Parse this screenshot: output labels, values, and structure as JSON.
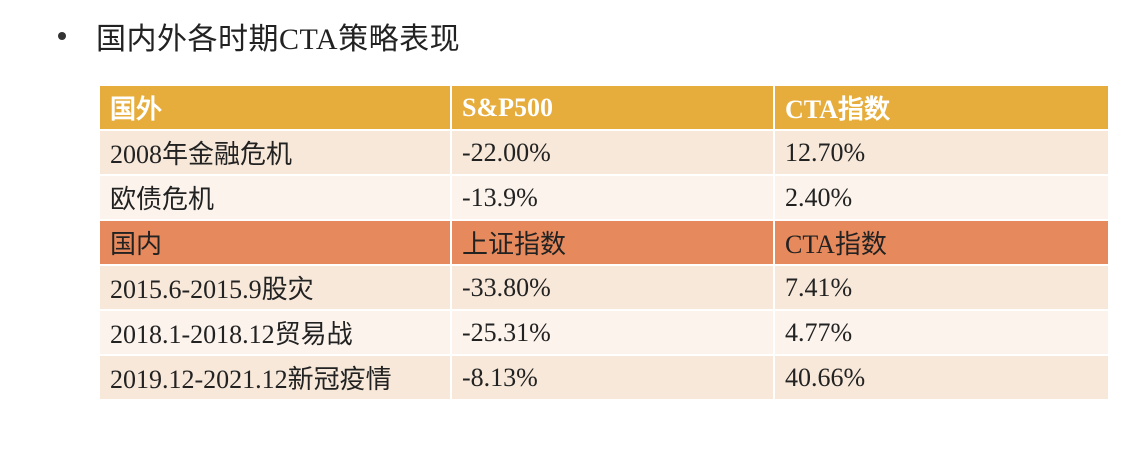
{
  "slide": {
    "heading": "国内外各时期CTA策略表现"
  },
  "table": {
    "sections": [
      {
        "header": [
          "国外",
          "S&P500",
          "CTA指数"
        ],
        "header_color": "#e6ad3c",
        "rows": [
          [
            "2008年金融危机",
            "-22.00%",
            "12.70%"
          ],
          [
            "欧债危机",
            "-13.9%",
            "2.40%"
          ]
        ]
      },
      {
        "header": [
          "国内",
          "上证指数",
          "CTA指数"
        ],
        "header_color": "#e6895c",
        "rows": [
          [
            "2015.6-2015.9股灾",
            "-33.80%",
            "7.41%"
          ],
          [
            "2018.1-2018.12贸易战",
            "-25.31%",
            "4.77%"
          ],
          [
            "2019.12-2021.12新冠疫情",
            "-8.13%",
            "40.66%"
          ]
        ]
      }
    ]
  }
}
